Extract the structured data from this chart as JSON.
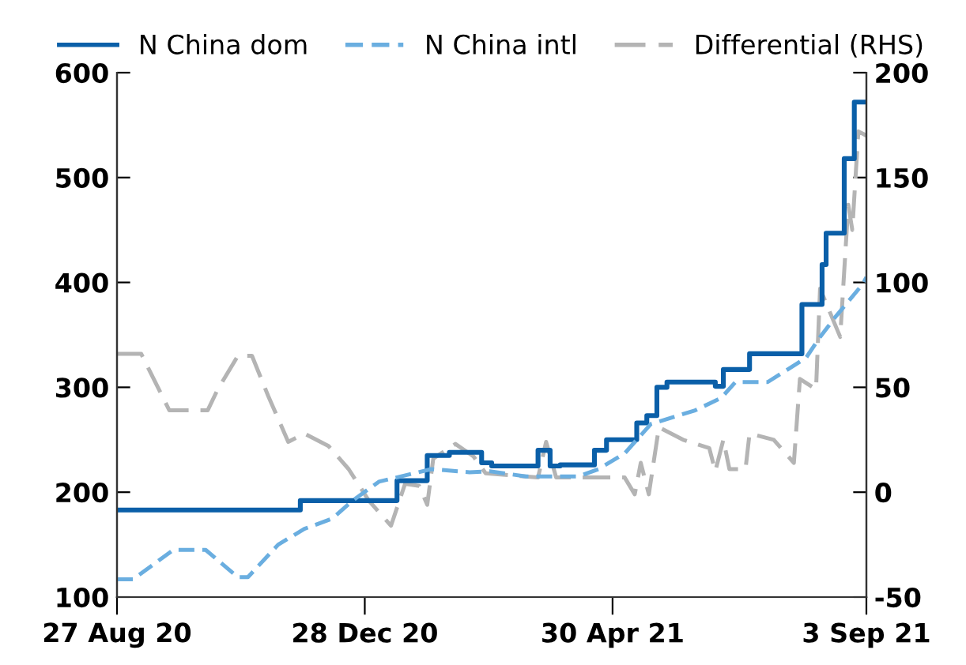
{
  "chart_data": {
    "type": "line",
    "legend": "top",
    "xlim": [
      "2020-08-27",
      "2021-09-03"
    ],
    "xticks": [
      {
        "value": "2020-08-27",
        "label": "27 Aug 20"
      },
      {
        "value": "2020-12-28",
        "label": "28 Dec 20"
      },
      {
        "value": "2021-04-30",
        "label": "30 Apr 21"
      },
      {
        "value": "2021-09-03",
        "label": "3 Sep 21"
      }
    ],
    "ylim": [
      100,
      600
    ],
    "yticks": [
      100,
      200,
      300,
      400,
      500,
      600
    ],
    "y2lim": [
      -50,
      200
    ],
    "y2ticks": [
      -50,
      0,
      50,
      100,
      150,
      200
    ],
    "series": [
      {
        "name": "N China dom",
        "type": "step",
        "color": "#0a5fa8",
        "line_style": "solid",
        "x": [
          "2020-08-27",
          "2020-11-26",
          "2021-01-13",
          "2021-01-28",
          "2021-02-08",
          "2021-02-24",
          "2021-03-01",
          "2021-03-24",
          "2021-03-30",
          "2021-04-04",
          "2021-04-21",
          "2021-04-27",
          "2021-05-12",
          "2021-05-17",
          "2021-05-22",
          "2021-05-27",
          "2021-06-20",
          "2021-06-24",
          "2021-07-07",
          "2021-08-02",
          "2021-08-12",
          "2021-08-14",
          "2021-08-23",
          "2021-08-28",
          "2021-09-03"
        ],
        "values": [
          183,
          192,
          211,
          235,
          238,
          228,
          225,
          240,
          225,
          226,
          240,
          250,
          266,
          273,
          300,
          305,
          301,
          317,
          332,
          379,
          417,
          447,
          518,
          572,
          572
        ]
      },
      {
        "name": "N China intl",
        "color": "#6aaee0",
        "line_style": "dashed",
        "x": [
          "2020-08-27",
          "2020-09-04",
          "2020-09-24",
          "2020-10-10",
          "2020-10-26",
          "2020-10-31",
          "2020-11-15",
          "2020-11-28",
          "2020-12-12",
          "2020-12-22",
          "2021-01-04",
          "2021-01-30",
          "2021-02-18",
          "2021-02-28",
          "2021-03-18",
          "2021-04-13",
          "2021-04-23",
          "2021-05-06",
          "2021-05-19",
          "2021-06-10",
          "2021-06-23",
          "2021-06-30",
          "2021-07-16",
          "2021-08-04",
          "2021-08-11",
          "2021-08-19",
          "2021-09-01",
          "2021-09-03"
        ],
        "values": [
          117,
          117,
          145,
          145,
          119,
          119,
          150,
          165,
          175,
          192,
          210,
          222,
          219,
          220,
          215,
          215,
          222,
          237,
          265,
          278,
          290,
          305,
          305,
          328,
          348,
          368,
          398,
          405
        ]
      },
      {
        "name": "Differential (RHS)",
        "axis": "y2",
        "color": "#b4b4b4",
        "line_style": "dashed",
        "x": [
          "2020-08-27",
          "2020-09-08",
          "2020-09-22",
          "2020-10-11",
          "2020-10-16",
          "2020-10-26",
          "2020-11-02",
          "2020-11-10",
          "2020-11-20",
          "2020-11-28",
          "2020-12-10",
          "2020-12-20",
          "2020-12-30",
          "2021-01-10",
          "2021-01-17",
          "2021-01-24",
          "2021-01-28",
          "2021-01-31",
          "2021-02-11",
          "2021-02-20",
          "2021-02-26",
          "2021-03-24",
          "2021-03-28",
          "2021-04-02",
          "2021-05-06",
          "2021-05-11",
          "2021-05-14",
          "2021-05-18",
          "2021-05-23",
          "2021-06-04",
          "2021-06-17",
          "2021-06-20",
          "2021-06-24",
          "2021-06-27",
          "2021-07-05",
          "2021-07-07",
          "2021-07-19",
          "2021-07-29",
          "2021-08-01",
          "2021-08-09",
          "2021-08-11",
          "2021-08-21",
          "2021-08-25",
          "2021-08-27",
          "2021-08-30",
          "2021-09-03"
        ],
        "values": [
          66,
          66,
          39,
          39,
          49,
          65,
          65,
          46,
          24,
          28,
          22,
          11,
          -4,
          -16,
          4,
          3,
          -6,
          16,
          23,
          17,
          9,
          7,
          24,
          7,
          7,
          -1,
          14,
          -1,
          31,
          25,
          21,
          10,
          25,
          11,
          11,
          28,
          25,
          14,
          54,
          49,
          97,
          74,
          137,
          125,
          172,
          170
        ]
      }
    ]
  }
}
